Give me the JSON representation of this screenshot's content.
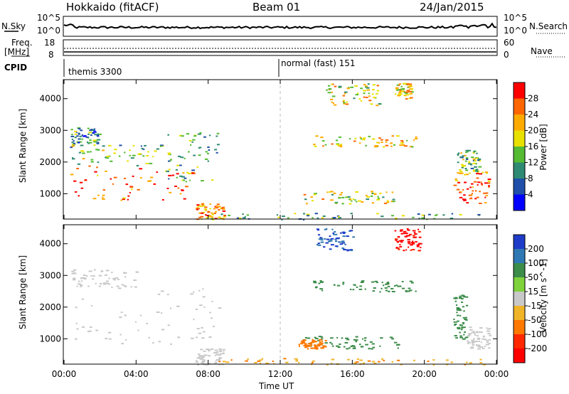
{
  "header": {
    "title": "Hokkaido (fitACF)",
    "beam": "Beam 01",
    "date": "24/Jan/2015"
  },
  "top_panel": {
    "left_label": "N.Sky",
    "right_label": "N.Search",
    "left_ticks": [
      "10^5",
      "10^0"
    ],
    "right_ticks": [
      "10^5",
      "10^0"
    ]
  },
  "freq_panel": {
    "left_label_1": "Freq.",
    "left_label_2": "[MHz]",
    "right_label": "Nave",
    "left_ticks": [
      "18",
      "8"
    ],
    "right_ticks": [
      "60",
      "0"
    ]
  },
  "cpid": {
    "label": "CPID",
    "segments": [
      {
        "name": "themis 3300",
        "start_hour": 0
      },
      {
        "name": "normal (fast) 151",
        "start_hour": 12
      }
    ]
  },
  "chart_data": [
    {
      "type": "heatmap",
      "name": "power",
      "ylabel": "Slant Range [km]",
      "xlabel": "",
      "xlim": [
        0,
        24
      ],
      "ylim": [
        200,
        4600
      ],
      "yticks": [
        1000,
        2000,
        3000,
        4000
      ],
      "colorbar": {
        "label": "Power [dB]",
        "ticks": [
          "28",
          "24",
          "20",
          "16",
          "12",
          "8",
          "4"
        ],
        "colors": [
          "#ff0000",
          "#ff6600",
          "#ffaa00",
          "#e8e000",
          "#55bb33",
          "#2f8a73",
          "#1f4fa8",
          "#0000ff"
        ]
      },
      "regions": [
        {
          "x": [
            0.3,
            7.2
          ],
          "y": [
            800,
            1900
          ],
          "level": 26
        },
        {
          "x": [
            0.3,
            5.5
          ],
          "y": [
            1900,
            2600
          ],
          "level": 14
        },
        {
          "x": [
            0.3,
            2.0
          ],
          "y": [
            2600,
            3100
          ],
          "level": 10
        },
        {
          "x": [
            5.5,
            8.6
          ],
          "y": [
            1400,
            3000
          ],
          "level": 12
        },
        {
          "x": [
            7.3,
            8.9
          ],
          "y": [
            200,
            700
          ],
          "level": 24
        },
        {
          "x": [
            8.0,
            23.5
          ],
          "y": [
            200,
            400
          ],
          "level": 12
        },
        {
          "x": [
            13.2,
            18.5
          ],
          "y": [
            700,
            1100
          ],
          "level": 18
        },
        {
          "x": [
            13.8,
            19.5
          ],
          "y": [
            2500,
            2850
          ],
          "level": 20
        },
        {
          "x": [
            14.5,
            17.5
          ],
          "y": [
            3800,
            4500
          ],
          "level": 18
        },
        {
          "x": [
            18.3,
            19.3
          ],
          "y": [
            4000,
            4500
          ],
          "level": 20
        },
        {
          "x": [
            21.6,
            23.6
          ],
          "y": [
            700,
            1700
          ],
          "level": 26
        },
        {
          "x": [
            21.8,
            23.0
          ],
          "y": [
            1700,
            2400
          ],
          "level": 14
        }
      ]
    },
    {
      "type": "heatmap",
      "name": "velocity",
      "ylabel": "Slant Range [km]",
      "xlabel": "Time UT",
      "xlim": [
        0,
        24
      ],
      "ylim": [
        200,
        4600
      ],
      "yticks": [
        1000,
        2000,
        3000,
        4000
      ],
      "xticks": [
        "00:00",
        "04:00",
        "08:00",
        "12:00",
        "16:00",
        "20:00",
        "00:00"
      ],
      "colorbar": {
        "label": "Velocity [m s^-1]",
        "ticks": [
          "200",
          "100",
          "50",
          "15",
          "-15",
          "-50",
          "-100",
          "-200"
        ],
        "colors": [
          "#1e3cc8",
          "#2e78b4",
          "#3c8c4a",
          "#7fd23c",
          "#c8c8c8",
          "#f0b428",
          "#ff7800",
          "#ff2800",
          "#ff0000"
        ]
      },
      "regions": [
        {
          "x": [
            0.3,
            8.6
          ],
          "y": [
            700,
            2600
          ],
          "level": 0
        },
        {
          "x": [
            0.3,
            4.0
          ],
          "y": [
            2600,
            3200
          ],
          "level": 0
        },
        {
          "x": [
            8.0,
            23.5
          ],
          "y": [
            200,
            400
          ],
          "level": -30
        },
        {
          "x": [
            7.3,
            8.9
          ],
          "y": [
            200,
            700
          ],
          "level": 0
        },
        {
          "x": [
            13.2,
            18.5
          ],
          "y": [
            700,
            1100
          ],
          "level": 40
        },
        {
          "x": [
            13.0,
            14.5
          ],
          "y": [
            700,
            1000
          ],
          "level": -60
        },
        {
          "x": [
            13.8,
            19.5
          ],
          "y": [
            2500,
            2850
          ],
          "level": 40
        },
        {
          "x": [
            14.0,
            16.0
          ],
          "y": [
            3800,
            4500
          ],
          "level": 150
        },
        {
          "x": [
            18.3,
            19.8
          ],
          "y": [
            3800,
            4500
          ],
          "level": -200
        },
        {
          "x": [
            21.6,
            22.3
          ],
          "y": [
            1000,
            2400
          ],
          "level": 40
        },
        {
          "x": [
            22.3,
            23.6
          ],
          "y": [
            700,
            1400
          ],
          "level": 0
        }
      ]
    }
  ]
}
